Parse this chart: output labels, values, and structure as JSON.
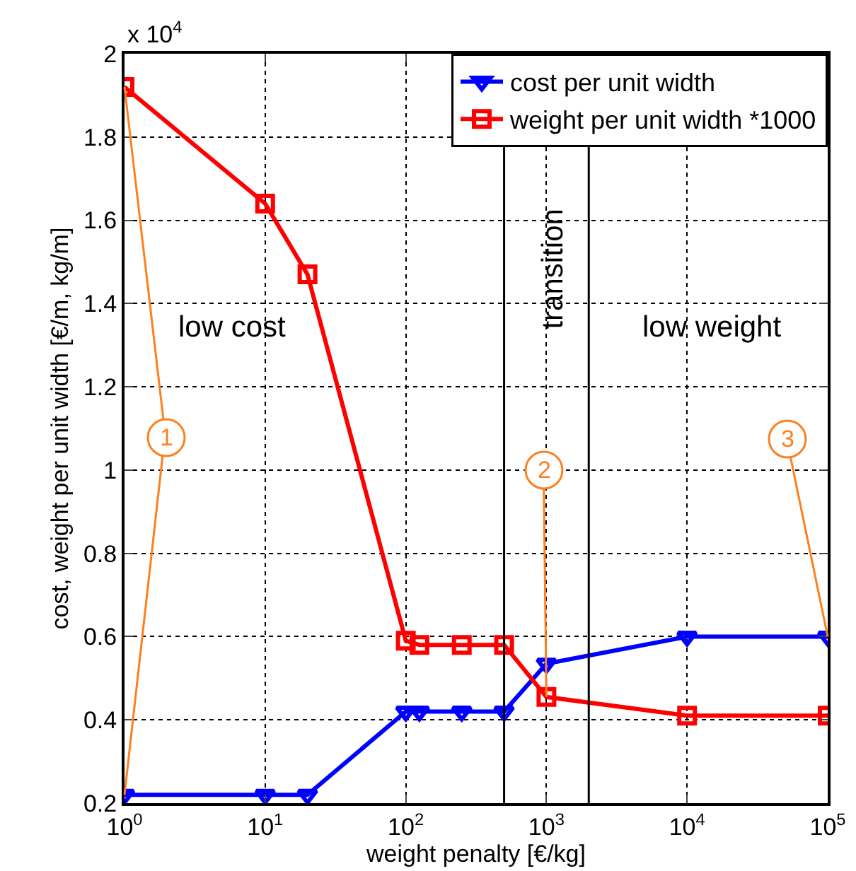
{
  "chart_data": {
    "type": "line",
    "xlabel": "weight penalty [€/kg]",
    "ylabel": "cost, weight per unit width [€/m, kg/m]",
    "x": [
      1,
      10,
      20,
      100,
      125,
      250,
      500,
      1000,
      10000,
      100000
    ],
    "series": [
      {
        "name": "cost per unit width",
        "color": "#0000ff",
        "marker": "triangle",
        "values": [
          0.22,
          0.22,
          0.22,
          0.42,
          0.42,
          0.42,
          0.42,
          0.535,
          0.6,
          0.6
        ]
      },
      {
        "name": "weight per unit width *1000",
        "color": "#ff0000",
        "marker": "square",
        "values": [
          1.92,
          1.64,
          1.47,
          0.59,
          0.58,
          0.58,
          0.58,
          0.455,
          0.41,
          0.41
        ]
      }
    ],
    "log": "x",
    "xlim": [
      1,
      100000
    ],
    "xticks": [
      {
        "value": 1,
        "label": "10$^{0}$"
      },
      {
        "value": 10,
        "label": "10$^{1}$"
      },
      {
        "value": 100,
        "label": "10$^{2}$"
      },
      {
        "value": 1000,
        "label": "10$^{3}$"
      },
      {
        "value": 10000,
        "label": "10$^{4}$"
      },
      {
        "value": 100000,
        "label": "10$^{5}$"
      }
    ],
    "ylim": [
      0.2,
      2
    ],
    "yticks": [
      0.2,
      0.4,
      0.6,
      0.8,
      1,
      1.2,
      1.4,
      1.6,
      1.8,
      2
    ],
    "grid": true,
    "legend": "top right",
    "line_style": "solid",
    "ref_lines": [
      {
        "axis": "x",
        "value": 500,
        "color": "#000000"
      },
      {
        "axis": "x",
        "value": 2000,
        "color": "#000000"
      }
    ],
    "annotations": [
      {
        "text": "1",
        "x": 1,
        "y": 1.92
      },
      {
        "text": "2",
        "x": 1000,
        "y": 0.455
      },
      {
        "text": "3",
        "x": 100000,
        "y": 0.6
      },
      "low cost",
      "transition",
      "low weight",
      "x 10$^{4}$"
    ]
  }
}
